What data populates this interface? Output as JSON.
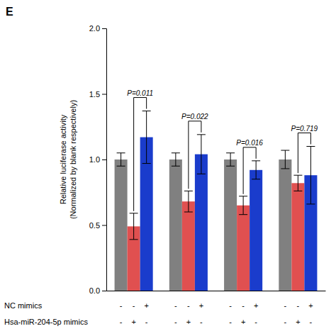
{
  "chart_data": {
    "type": "bar",
    "title": "E",
    "ylabel": "Relative luciferase activity\n(Normalized by blank respectively)",
    "categories": [
      null,
      null,
      null,
      null
    ],
    "series": [
      {
        "color": "#808080",
        "values": [
          1.0,
          1.0,
          1.0,
          1.0
        ],
        "errors": [
          0.05,
          0.05,
          0.05,
          0.07
        ]
      },
      {
        "color": "#e05050",
        "values": [
          0.49,
          0.68,
          0.65,
          0.82
        ],
        "errors": [
          0.1,
          0.08,
          0.07,
          0.06
        ]
      },
      {
        "color": "#1a3ccc",
        "values": [
          1.17,
          1.04,
          0.92,
          0.88
        ],
        "errors": [
          0.2,
          0.15,
          0.07,
          0.22
        ]
      }
    ],
    "annotations": [
      "P=0.011",
      "P=0.022",
      "P=0.016",
      "P=0.719"
    ],
    "rows": [
      {
        "label": "NC mimics",
        "marks": [
          "-",
          "-",
          "+",
          "-",
          "-",
          "+",
          "-",
          "-",
          "+",
          "-",
          "-",
          "+"
        ]
      },
      {
        "label": "Hsa-miR-204-5p mimics",
        "marks": [
          "-",
          "+",
          "-",
          "-",
          "+",
          "-",
          "-",
          "+",
          "-",
          "-",
          "+",
          "-"
        ]
      }
    ],
    "ylim": [
      0,
      2.0
    ],
    "yticks": [
      {
        "value": 0.0,
        "label": "0.0"
      },
      0.5,
      {
        "value": 1.0,
        "label": "1.0"
      },
      1.5,
      {
        "value": 2.0,
        "label": "2.0"
      }
    ],
    "grid": false
  }
}
